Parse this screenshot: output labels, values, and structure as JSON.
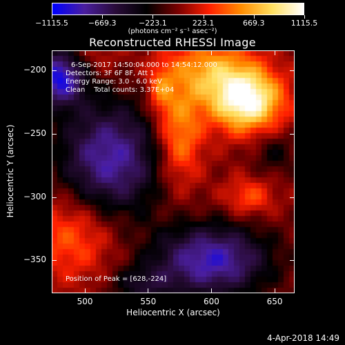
{
  "colorbar": {
    "ticks": [
      "−1115.5",
      "−669.3",
      "−223.1",
      "223.1",
      "669.3",
      "1115.5"
    ],
    "tick_values": [
      -1115.5,
      -669.3,
      -223.1,
      223.1,
      669.3,
      1115.5
    ],
    "units_label": "(photons cm⁻² s⁻¹ asec⁻²)"
  },
  "chart_data": {
    "type": "heatmap",
    "title": "Reconstructed RHESSI Image",
    "xlabel": "Heliocentric X (arcsec)",
    "ylabel": "Heliocentric Y (arcsec)",
    "xlim": [
      474,
      666
    ],
    "ylim": [
      -376,
      -184
    ],
    "xticks": [
      500,
      550,
      600,
      650
    ],
    "yticks": [
      -200,
      -250,
      -300,
      -350
    ],
    "value_range": [
      -1115.5,
      1115.5
    ],
    "peak": [
      628,
      -224
    ],
    "colormap": [
      "#0000ff",
      "#4b1fa0",
      "#2a0c3a",
      "#000000",
      "#7a0000",
      "#ff2000",
      "#ff8c00",
      "#ffe060",
      "#ffffff"
    ]
  },
  "annotations": {
    "time_range": "6-Sep-2017 14:50:04.000 to 14:54:12.000",
    "detectors": "Detectors: 3F 6F 8F, Att 1",
    "energy": "Energy Range: 3.0 - 6.0 keV",
    "clean": "Clean    Total counts: 3.37E+04",
    "peak_position": "Position of Peak = [628,-224]"
  },
  "footer": {
    "timestamp": "4-Apr-2018 14:49"
  }
}
